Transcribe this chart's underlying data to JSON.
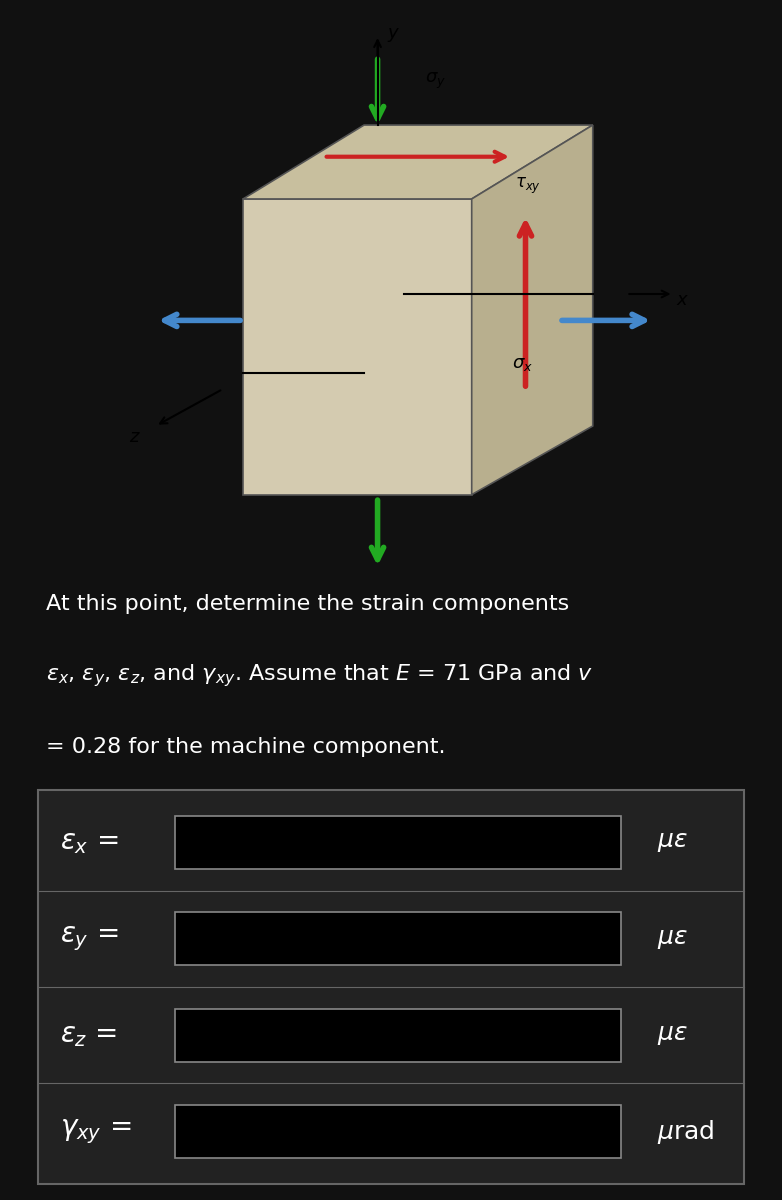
{
  "bg_color": "#111111",
  "image_bg": "#ffffff",
  "text_color": "#ffffff",
  "paragraph_text_line1": "At this point, determine the strain components",
  "paragraph_text_line3": "= 0.28 for the machine component.",
  "rows": [
    {
      "label": "$\\varepsilon_x$ =",
      "unit": "$\\mu\\varepsilon$"
    },
    {
      "label": "$\\varepsilon_y$ =",
      "unit": "$\\mu\\varepsilon$"
    },
    {
      "label": "$\\varepsilon_z$ =",
      "unit": "$\\mu\\varepsilon$"
    },
    {
      "label": "$\\gamma_{xy}$ =",
      "unit": "$\\mu$rad"
    }
  ],
  "table_bg": "#222222",
  "table_edge": "#666666",
  "input_box_bg": "#000000",
  "input_box_edge": "#888888",
  "label_fontsize": 18,
  "unit_fontsize": 18,
  "para_fontsize": 16,
  "cube_front_color": "#d4cbb0",
  "cube_top_color": "#c8bf9e",
  "cube_right_color": "#b8af8e",
  "cube_edge_color": "#555555",
  "green_arrow_color": "#22aa22",
  "blue_arrow_color": "#4488cc",
  "red_arrow_color": "#cc2222"
}
